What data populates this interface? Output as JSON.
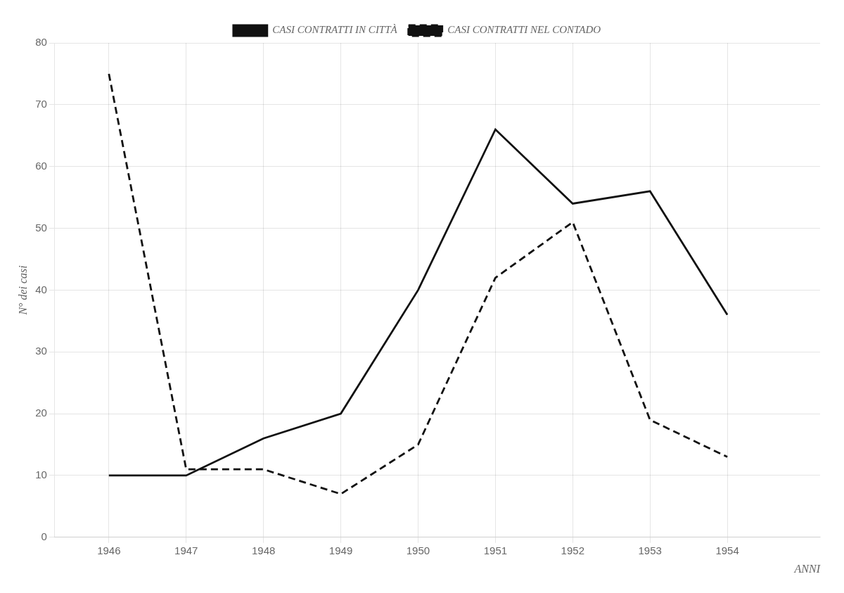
{
  "chart_data": {
    "type": "line",
    "x": [
      1946,
      1947,
      1948,
      1949,
      1950,
      1951,
      1952,
      1953,
      1954
    ],
    "series": [
      {
        "name": "CASI CONTRATTI IN CITTÀ",
        "color": "#111111",
        "line_style": "solid",
        "values": [
          10,
          10,
          16,
          20,
          40,
          66,
          54,
          56,
          36
        ]
      },
      {
        "name": "CASI CONTRATTI NEL CONTADO",
        "color": "#111111",
        "line_style": "dashed",
        "values": [
          75,
          11,
          11,
          7,
          15,
          42,
          51,
          19,
          13
        ]
      }
    ],
    "x_label": "ANNI",
    "y_label": "N° dei casi",
    "xlim": [
      1945.3,
      1955.2
    ],
    "xticks": [
      1946,
      1947,
      1948,
      1949,
      1950,
      1951,
      1952,
      1953,
      1954
    ],
    "ylim": [
      0,
      80
    ],
    "yticks": [
      0,
      10,
      20,
      30,
      40,
      50,
      60,
      70,
      80
    ],
    "grid": true,
    "legend": "upper center"
  }
}
